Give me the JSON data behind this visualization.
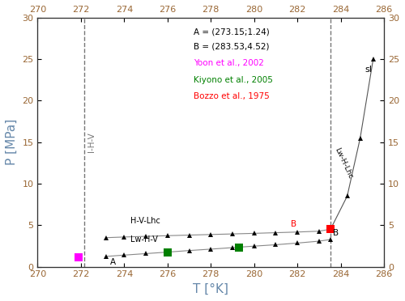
{
  "xlabel": "T [°K]",
  "ylabel": "P [MPa]",
  "xlim": [
    270,
    286
  ],
  "ylim": [
    0,
    30
  ],
  "xticks": [
    270,
    272,
    274,
    276,
    278,
    280,
    282,
    284,
    286
  ],
  "yticks": [
    0,
    5,
    10,
    15,
    20,
    25,
    30
  ],
  "point_A": [
    273.15,
    1.24
  ],
  "point_B": [
    283.53,
    4.52
  ],
  "vline1": 272.15,
  "vline2": 283.53,
  "annotation_A_text": "A = (273.15;1.24)",
  "annotation_B_text": "B = (283.53,4.52)",
  "legend_yoon": "Yoon et al., 2002",
  "legend_kiyono": "Kiyono et al., 2005",
  "legend_bozzo": "Bozzo et al., 1975",
  "color_yoon": "#FF00FF",
  "color_kiyono": "#008000",
  "color_bozzo": "#FF0000",
  "color_text_AB": "#000000",
  "color_axis_label": "#6688AA",
  "color_tick_label": "#996633",
  "ihv_label": "I-H-V",
  "hvlhc_label": "H-V-Lhc",
  "lwhv_label": "Lw-H-V",
  "lwhlhc_label": "Lw-H-Lhc",
  "sI_label": "sI",
  "lwhv_line_T": [
    273.15,
    274.0,
    275.0,
    276.0,
    277.0,
    278.0,
    279.0,
    280.0,
    281.0,
    282.0,
    283.0,
    283.53
  ],
  "lwhv_line_P": [
    1.24,
    1.4,
    1.58,
    1.76,
    1.95,
    2.12,
    2.3,
    2.48,
    2.65,
    2.85,
    3.08,
    3.28
  ],
  "hvlhc_line_T": [
    273.15,
    274.0,
    275.0,
    276.0,
    277.0,
    278.0,
    279.0,
    280.0,
    281.0,
    282.0,
    283.0,
    283.53
  ],
  "hvlhc_line_P": [
    3.5,
    3.58,
    3.66,
    3.74,
    3.81,
    3.88,
    3.95,
    4.02,
    4.1,
    4.18,
    4.28,
    4.52
  ],
  "lwhlhc_line_T": [
    283.53,
    284.3,
    284.9,
    285.5
  ],
  "lwhlhc_line_P": [
    4.52,
    8.5,
    15.5,
    25.0
  ],
  "yoon_data_T": [
    271.9
  ],
  "yoon_data_P": [
    1.12
  ],
  "kiyono_data_T": [
    276.0,
    279.3,
    283.53
  ],
  "kiyono_data_P": [
    1.76,
    2.35,
    4.52
  ],
  "bozzo_data_T": [
    283.53
  ],
  "bozzo_data_P": [
    4.52
  ],
  "bg_color": "#FFFFFF"
}
